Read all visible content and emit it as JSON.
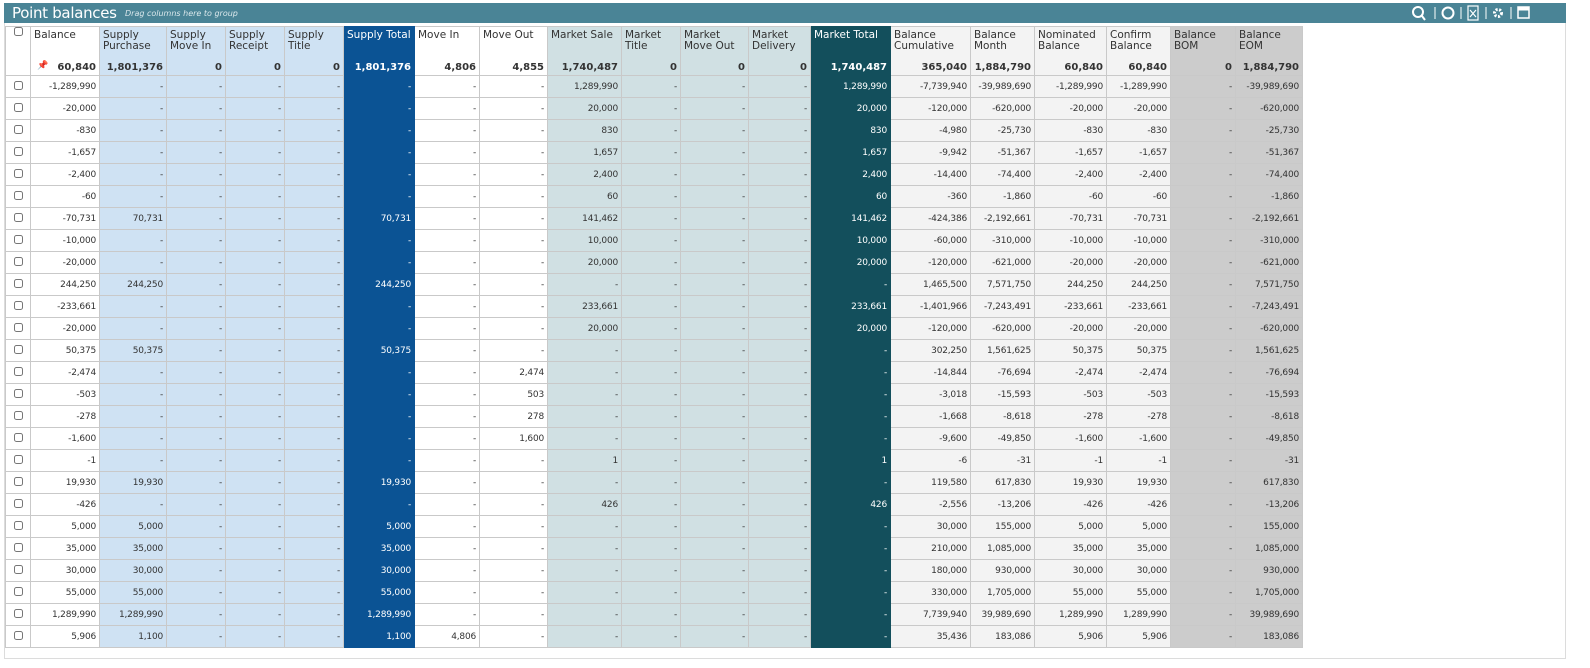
{
  "header": {
    "title": "Point balances",
    "hint": "Drag columns here to group"
  },
  "table": {
    "columns": [
      {
        "label": "Balance",
        "total": "60,840"
      },
      {
        "label": "Supply Purchase",
        "total": "1,801,376"
      },
      {
        "label": "Supply Move In",
        "total": "0"
      },
      {
        "label": "Supply Receipt",
        "total": "0"
      },
      {
        "label": "Supply Title",
        "total": "0"
      },
      {
        "label": "Supply Total",
        "total": "1,801,376"
      },
      {
        "label": "Move In",
        "total": "4,806"
      },
      {
        "label": "Move Out",
        "total": "4,855"
      },
      {
        "label": "Market Sale",
        "total": "1,740,487"
      },
      {
        "label": "Market Title",
        "total": "0"
      },
      {
        "label": "Market Move Out",
        "total": "0"
      },
      {
        "label": "Market Delivery",
        "total": "0"
      },
      {
        "label": "Market Total",
        "total": "1,740,487"
      },
      {
        "label": "Balance Cumulative",
        "total": "365,040"
      },
      {
        "label": "Balance Month",
        "total": "1,884,790"
      },
      {
        "label": "Nominated Balance",
        "total": "60,840"
      },
      {
        "label": "Confirm Balance",
        "total": "60,840"
      },
      {
        "label": "Balance BOM",
        "total": "0"
      },
      {
        "label": "Balance EOM",
        "total": "1,884,790"
      }
    ],
    "rows": [
      [
        "-1,289,990",
        "-",
        "-",
        "-",
        "-",
        "-",
        "-",
        "-",
        "1,289,990",
        "-",
        "-",
        "-",
        "1,289,990",
        "-7,739,940",
        "-39,989,690",
        "-1,289,990",
        "-1,289,990",
        "-",
        "-39,989,690"
      ],
      [
        "-20,000",
        "-",
        "-",
        "-",
        "-",
        "-",
        "-",
        "-",
        "20,000",
        "-",
        "-",
        "-",
        "20,000",
        "-120,000",
        "-620,000",
        "-20,000",
        "-20,000",
        "-",
        "-620,000"
      ],
      [
        "-830",
        "-",
        "-",
        "-",
        "-",
        "-",
        "-",
        "-",
        "830",
        "-",
        "-",
        "-",
        "830",
        "-4,980",
        "-25,730",
        "-830",
        "-830",
        "-",
        "-25,730"
      ],
      [
        "-1,657",
        "-",
        "-",
        "-",
        "-",
        "-",
        "-",
        "-",
        "1,657",
        "-",
        "-",
        "-",
        "1,657",
        "-9,942",
        "-51,367",
        "-1,657",
        "-1,657",
        "-",
        "-51,367"
      ],
      [
        "-2,400",
        "-",
        "-",
        "-",
        "-",
        "-",
        "-",
        "-",
        "2,400",
        "-",
        "-",
        "-",
        "2,400",
        "-14,400",
        "-74,400",
        "-2,400",
        "-2,400",
        "-",
        "-74,400"
      ],
      [
        "-60",
        "-",
        "-",
        "-",
        "-",
        "-",
        "-",
        "-",
        "60",
        "-",
        "-",
        "-",
        "60",
        "-360",
        "-1,860",
        "-60",
        "-60",
        "-",
        "-1,860"
      ],
      [
        "-70,731",
        "70,731",
        "-",
        "-",
        "-",
        "70,731",
        "-",
        "-",
        "141,462",
        "-",
        "-",
        "-",
        "141,462",
        "-424,386",
        "-2,192,661",
        "-70,731",
        "-70,731",
        "-",
        "-2,192,661"
      ],
      [
        "-10,000",
        "-",
        "-",
        "-",
        "-",
        "-",
        "-",
        "-",
        "10,000",
        "-",
        "-",
        "-",
        "10,000",
        "-60,000",
        "-310,000",
        "-10,000",
        "-10,000",
        "-",
        "-310,000"
      ],
      [
        "-20,000",
        "-",
        "-",
        "-",
        "-",
        "-",
        "-",
        "-",
        "20,000",
        "-",
        "-",
        "-",
        "20,000",
        "-120,000",
        "-621,000",
        "-20,000",
        "-20,000",
        "-",
        "-621,000"
      ],
      [
        "244,250",
        "244,250",
        "-",
        "-",
        "-",
        "244,250",
        "-",
        "-",
        "-",
        "-",
        "-",
        "-",
        "-",
        "1,465,500",
        "7,571,750",
        "244,250",
        "244,250",
        "-",
        "7,571,750"
      ],
      [
        "-233,661",
        "-",
        "-",
        "-",
        "-",
        "-",
        "-",
        "-",
        "233,661",
        "-",
        "-",
        "-",
        "233,661",
        "-1,401,966",
        "-7,243,491",
        "-233,661",
        "-233,661",
        "-",
        "-7,243,491"
      ],
      [
        "-20,000",
        "-",
        "-",
        "-",
        "-",
        "-",
        "-",
        "-",
        "20,000",
        "-",
        "-",
        "-",
        "20,000",
        "-120,000",
        "-620,000",
        "-20,000",
        "-20,000",
        "-",
        "-620,000"
      ],
      [
        "50,375",
        "50,375",
        "-",
        "-",
        "-",
        "50,375",
        "-",
        "-",
        "-",
        "-",
        "-",
        "-",
        "-",
        "302,250",
        "1,561,625",
        "50,375",
        "50,375",
        "-",
        "1,561,625"
      ],
      [
        "-2,474",
        "-",
        "-",
        "-",
        "-",
        "-",
        "-",
        "2,474",
        "-",
        "-",
        "-",
        "-",
        "-",
        "-14,844",
        "-76,694",
        "-2,474",
        "-2,474",
        "-",
        "-76,694"
      ],
      [
        "-503",
        "-",
        "-",
        "-",
        "-",
        "-",
        "-",
        "503",
        "-",
        "-",
        "-",
        "-",
        "-",
        "-3,018",
        "-15,593",
        "-503",
        "-503",
        "-",
        "-15,593"
      ],
      [
        "-278",
        "-",
        "-",
        "-",
        "-",
        "-",
        "-",
        "278",
        "-",
        "-",
        "-",
        "-",
        "-",
        "-1,668",
        "-8,618",
        "-278",
        "-278",
        "-",
        "-8,618"
      ],
      [
        "-1,600",
        "-",
        "-",
        "-",
        "-",
        "-",
        "-",
        "1,600",
        "-",
        "-",
        "-",
        "-",
        "-",
        "-9,600",
        "-49,850",
        "-1,600",
        "-1,600",
        "-",
        "-49,850"
      ],
      [
        "-1",
        "-",
        "-",
        "-",
        "-",
        "-",
        "-",
        "-",
        "1",
        "-",
        "-",
        "-",
        "1",
        "-6",
        "-31",
        "-1",
        "-1",
        "-",
        "-31"
      ],
      [
        "19,930",
        "19,930",
        "-",
        "-",
        "-",
        "19,930",
        "-",
        "-",
        "-",
        "-",
        "-",
        "-",
        "-",
        "119,580",
        "617,830",
        "19,930",
        "19,930",
        "-",
        "617,830"
      ],
      [
        "-426",
        "-",
        "-",
        "-",
        "-",
        "-",
        "-",
        "-",
        "426",
        "-",
        "-",
        "-",
        "426",
        "-2,556",
        "-13,206",
        "-426",
        "-426",
        "-",
        "-13,206"
      ],
      [
        "5,000",
        "5,000",
        "-",
        "-",
        "-",
        "5,000",
        "-",
        "-",
        "-",
        "-",
        "-",
        "-",
        "-",
        "30,000",
        "155,000",
        "5,000",
        "5,000",
        "-",
        "155,000"
      ],
      [
        "35,000",
        "35,000",
        "-",
        "-",
        "-",
        "35,000",
        "-",
        "-",
        "-",
        "-",
        "-",
        "-",
        "-",
        "210,000",
        "1,085,000",
        "35,000",
        "35,000",
        "-",
        "1,085,000"
      ],
      [
        "30,000",
        "30,000",
        "-",
        "-",
        "-",
        "30,000",
        "-",
        "-",
        "-",
        "-",
        "-",
        "-",
        "-",
        "180,000",
        "930,000",
        "30,000",
        "30,000",
        "-",
        "930,000"
      ],
      [
        "55,000",
        "55,000",
        "-",
        "-",
        "-",
        "55,000",
        "-",
        "-",
        "-",
        "-",
        "-",
        "-",
        "-",
        "330,000",
        "1,705,000",
        "55,000",
        "55,000",
        "-",
        "1,705,000"
      ],
      [
        "1,289,990",
        "1,289,990",
        "-",
        "-",
        "-",
        "1,289,990",
        "-",
        "-",
        "-",
        "-",
        "-",
        "-",
        "-",
        "7,739,940",
        "39,989,690",
        "1,289,990",
        "1,289,990",
        "-",
        "39,989,690"
      ],
      [
        "5,906",
        "1,100",
        "-",
        "-",
        "-",
        "1,100",
        "4,806",
        "-",
        "-",
        "-",
        "-",
        "-",
        "-",
        "35,436",
        "183,086",
        "5,906",
        "5,906",
        "-",
        "183,086"
      ]
    ]
  }
}
